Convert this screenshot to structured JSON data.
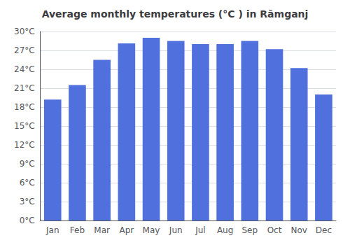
{
  "chart_data": {
    "type": "bar",
    "title": "Average monthly temperatures (°C ) in Rāmganj",
    "categories": [
      "Jan",
      "Feb",
      "Mar",
      "Apr",
      "May",
      "Jun",
      "Jul",
      "Aug",
      "Sep",
      "Oct",
      "Nov",
      "Dec"
    ],
    "values": [
      19.2,
      21.5,
      25.5,
      28.1,
      29.0,
      28.5,
      28.0,
      28.0,
      28.5,
      27.2,
      24.2,
      20.0
    ],
    "ylim": [
      0,
      30
    ],
    "yticks": [
      {
        "value": 0,
        "label": "0°C"
      },
      {
        "value": 3,
        "label": "3°C"
      },
      {
        "value": 6,
        "label": "6°C"
      },
      {
        "value": 9,
        "label": "9°C"
      },
      {
        "value": 12,
        "label": "12°C"
      },
      {
        "value": 15,
        "label": "15°C"
      },
      {
        "value": 18,
        "label": "18°C"
      },
      {
        "value": 21,
        "label": "21°C"
      },
      {
        "value": 24,
        "label": "24°C"
      },
      {
        "value": 27,
        "label": "27°C"
      },
      {
        "value": 30,
        "label": "30°C"
      }
    ],
    "grid": true
  }
}
